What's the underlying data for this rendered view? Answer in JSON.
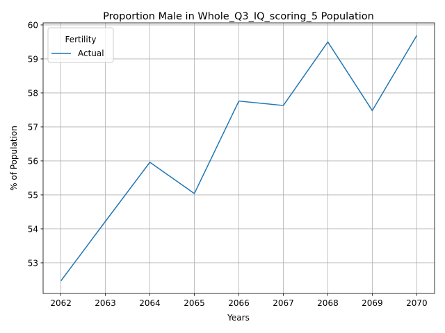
{
  "chart_data": {
    "type": "line",
    "title": "Proportion Male in Whole_Q3_IQ_scoring_5 Population",
    "xlabel": "Years",
    "ylabel": "% of Population",
    "x": [
      2062,
      2063,
      2064,
      2065,
      2066,
      2067,
      2068,
      2069,
      2070
    ],
    "xlim": [
      2061.6,
      2070.4
    ],
    "ylim": [
      52.1,
      60.06
    ],
    "yticks": [
      53,
      54,
      55,
      56,
      57,
      58,
      59,
      60
    ],
    "grid": true,
    "legend": {
      "title": "Fertility",
      "placement": "top-left"
    },
    "series": [
      {
        "name": "Actual",
        "color": "#1f77b4",
        "values": [
          52.47,
          54.22,
          55.96,
          55.04,
          57.76,
          57.63,
          59.5,
          57.48,
          59.69
        ]
      }
    ]
  }
}
